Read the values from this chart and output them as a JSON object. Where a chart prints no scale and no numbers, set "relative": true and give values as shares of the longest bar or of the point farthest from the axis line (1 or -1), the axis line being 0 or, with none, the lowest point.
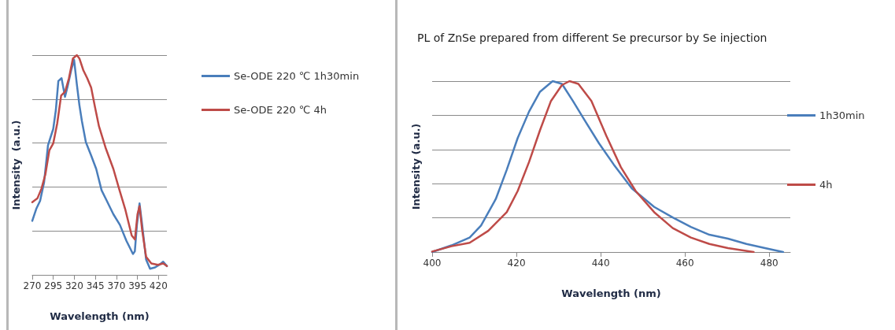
{
  "chart_data": [
    {
      "type": "line",
      "xlabel": "Wavelength (nm)",
      "ylabel": "Intensity  (a.u.)",
      "relative": true,
      "xlim": [
        270,
        430
      ],
      "xticks": [
        270,
        295,
        320,
        345,
        370,
        395,
        420
      ],
      "grid": "y",
      "legend": "right",
      "marker": "none",
      "line_style": "solid",
      "series": [
        {
          "name": "Se-ODE 220 ℃ 1h30min",
          "color": "#4a7ebb",
          "x": [
            270,
            274.7,
            279.3,
            284,
            288.7,
            294.9,
            298,
            301,
            304.8,
            308.9,
            312,
            316.6,
            319.7,
            322.9,
            326,
            329,
            333.7,
            340,
            346,
            352.4,
            358.6,
            366.4,
            374.1,
            381.9,
            389.7,
            391.9,
            394.4,
            397.5,
            400.6,
            405.3,
            410,
            416,
            421,
            425.6,
            430
          ],
          "values": [
            0.246,
            0.3,
            0.337,
            0.42,
            0.59,
            0.664,
            0.749,
            0.882,
            0.895,
            0.81,
            0.858,
            0.937,
            0.979,
            0.87,
            0.773,
            0.7,
            0.604,
            0.543,
            0.482,
            0.385,
            0.337,
            0.276,
            0.228,
            0.155,
            0.095,
            0.107,
            0.228,
            0.325,
            0.228,
            0.07,
            0.028,
            0.034,
            0.046,
            0.06,
            0.04
          ]
        },
        {
          "name": "Se-ODE 220 ℃ 4h",
          "color": "#be4b48",
          "x": [
            270,
            276.2,
            280.9,
            285.6,
            290.3,
            294.9,
            299.6,
            304.3,
            309,
            313.6,
            318.3,
            323,
            326,
            330.7,
            335.3,
            340,
            344.7,
            349.3,
            357.1,
            366.4,
            372.7,
            380.4,
            388.2,
            392,
            395.1,
            397.5,
            400.6,
            405.3,
            411.5,
            419.3,
            425.6,
            430
          ],
          "values": [
            0.331,
            0.349,
            0.392,
            0.458,
            0.567,
            0.598,
            0.688,
            0.816,
            0.834,
            0.895,
            0.985,
            1,
            0.985,
            0.931,
            0.895,
            0.852,
            0.761,
            0.676,
            0.579,
            0.482,
            0.398,
            0.3,
            0.179,
            0.161,
            0.276,
            0.313,
            0.204,
            0.082,
            0.052,
            0.046,
            0.052,
            0.04
          ]
        }
      ]
    },
    {
      "type": "line",
      "title": "PL of ZnSe prepared from different Se precursor by Se injection",
      "xlabel": "Wavelength (nm)",
      "ylabel": "Intensity (a.u.)",
      "relative": true,
      "xlim": [
        400,
        485
      ],
      "xticks": [
        400,
        420,
        440,
        460,
        480
      ],
      "grid": "y",
      "legend": "right",
      "marker": "none",
      "line_style": "solid",
      "series": [
        {
          "name": "1h30min",
          "color": "#4a7ebb",
          "x": [
            400,
            404.6,
            408.9,
            411.6,
            415.1,
            417.7,
            420.3,
            423,
            425.6,
            428.6,
            430.8,
            433.4,
            436.1,
            439.6,
            443.1,
            447.4,
            452.7,
            457.1,
            461.4,
            465.8,
            470.2,
            474.6,
            479,
            483.3
          ],
          "values": [
            0,
            0.039,
            0.085,
            0.155,
            0.31,
            0.481,
            0.667,
            0.822,
            0.938,
            1,
            0.984,
            0.884,
            0.775,
            0.636,
            0.512,
            0.372,
            0.264,
            0.202,
            0.147,
            0.101,
            0.078,
            0.047,
            0.023,
            0
          ]
        },
        {
          "name": "4h",
          "color": "#be4b48",
          "x": [
            400,
            404.6,
            408.9,
            413.3,
            417.7,
            420.3,
            423,
            425.6,
            428.2,
            430.8,
            432.6,
            434.7,
            437.8,
            441.3,
            444.8,
            448.3,
            452.7,
            457.1,
            461.4,
            465.8,
            470.2,
            476.3
          ],
          "values": [
            0.003,
            0.034,
            0.054,
            0.124,
            0.233,
            0.357,
            0.527,
            0.713,
            0.884,
            0.977,
            1,
            0.984,
            0.884,
            0.682,
            0.496,
            0.357,
            0.233,
            0.14,
            0.085,
            0.047,
            0.023,
            0
          ]
        }
      ]
    }
  ]
}
